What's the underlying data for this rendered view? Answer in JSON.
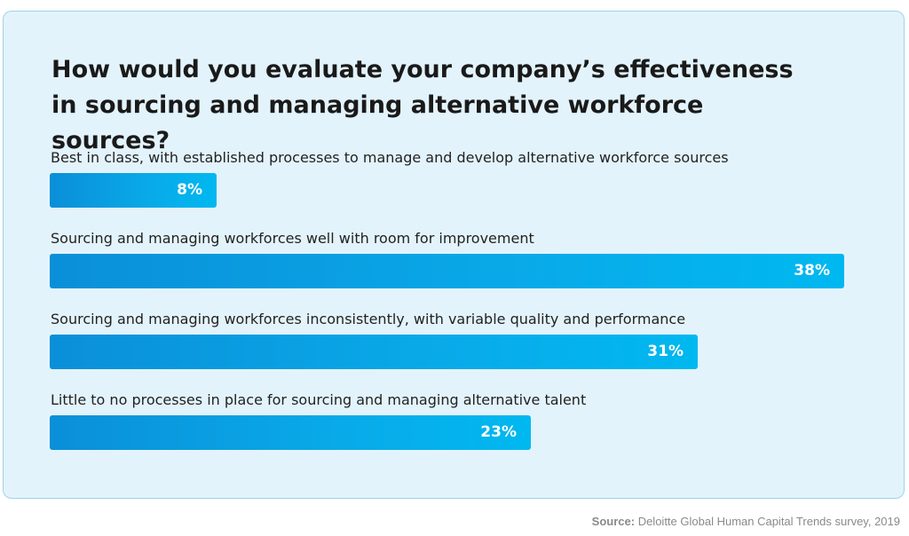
{
  "chart_data": {
    "type": "bar",
    "orientation": "horizontal",
    "title": "How would you evaluate your company’s effectiveness in sourcing and managing alternative workforce sources?",
    "categories": [
      "Best in class, with established processes to manage and develop alternative workforce sources",
      "Sourcing and managing workforces well with room for improvement",
      "Sourcing and managing workforces inconsistently, with variable quality and performance",
      "Little to no processes in place for sourcing and managing alternative talent"
    ],
    "values": [
      8,
      38,
      31,
      23
    ],
    "value_labels": [
      "8%",
      "38%",
      "31%",
      "23%"
    ],
    "xlim": [
      0,
      38
    ],
    "grid": false,
    "legend": "none",
    "colors": {
      "bar_start": "#0a8fd8",
      "bar_end": "#00b8f0",
      "card_bg": "#e3f3fb",
      "card_border": "#9fd3ea"
    }
  },
  "footer": {
    "source_label": "Source:",
    "source_text": " Deloitte Global Human Capital Trends survey, 2019"
  }
}
